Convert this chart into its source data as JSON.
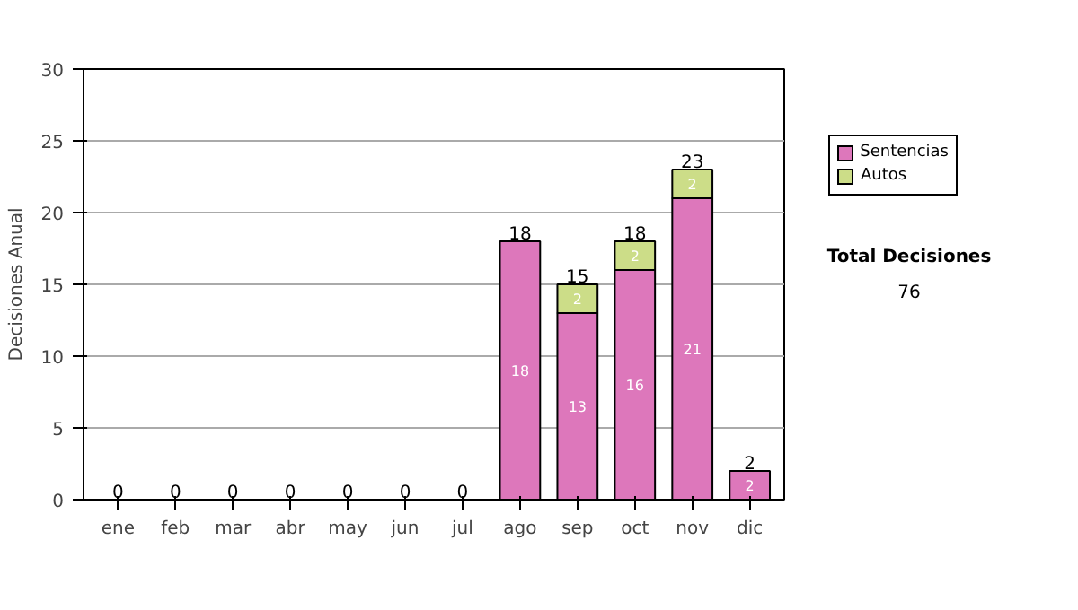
{
  "chart_data": {
    "type": "bar",
    "stacked": true,
    "ylabel": "Decisiones Anual",
    "categories": [
      "ene",
      "feb",
      "mar",
      "abr",
      "may",
      "jun",
      "jul",
      "ago",
      "sep",
      "oct",
      "nov",
      "dic"
    ],
    "series": [
      {
        "name": "Sentencias",
        "color": "#dd77bb",
        "values": [
          0,
          0,
          0,
          0,
          0,
          0,
          0,
          18,
          13,
          16,
          21,
          2
        ],
        "value_labels": [
          null,
          null,
          null,
          null,
          null,
          null,
          null,
          "18",
          "13",
          "16",
          "21",
          "2"
        ]
      },
      {
        "name": "Autos",
        "color": "#ccdd88",
        "values": [
          0,
          0,
          0,
          0,
          0,
          0,
          0,
          0,
          2,
          2,
          2,
          0
        ],
        "value_labels": [
          null,
          null,
          null,
          null,
          null,
          null,
          null,
          null,
          "2",
          "2",
          "2",
          null
        ]
      }
    ],
    "totals": [
      "0",
      "0",
      "0",
      "0",
      "0",
      "0",
      "0",
      "18",
      "15",
      "18",
      "23",
      "2"
    ],
    "ylim": [
      0,
      30
    ],
    "yticks": [
      0,
      5,
      10,
      15,
      20,
      25,
      30
    ],
    "grid": "y",
    "legend": "right",
    "annotations": [
      "Total Decisiones",
      "76"
    ]
  }
}
